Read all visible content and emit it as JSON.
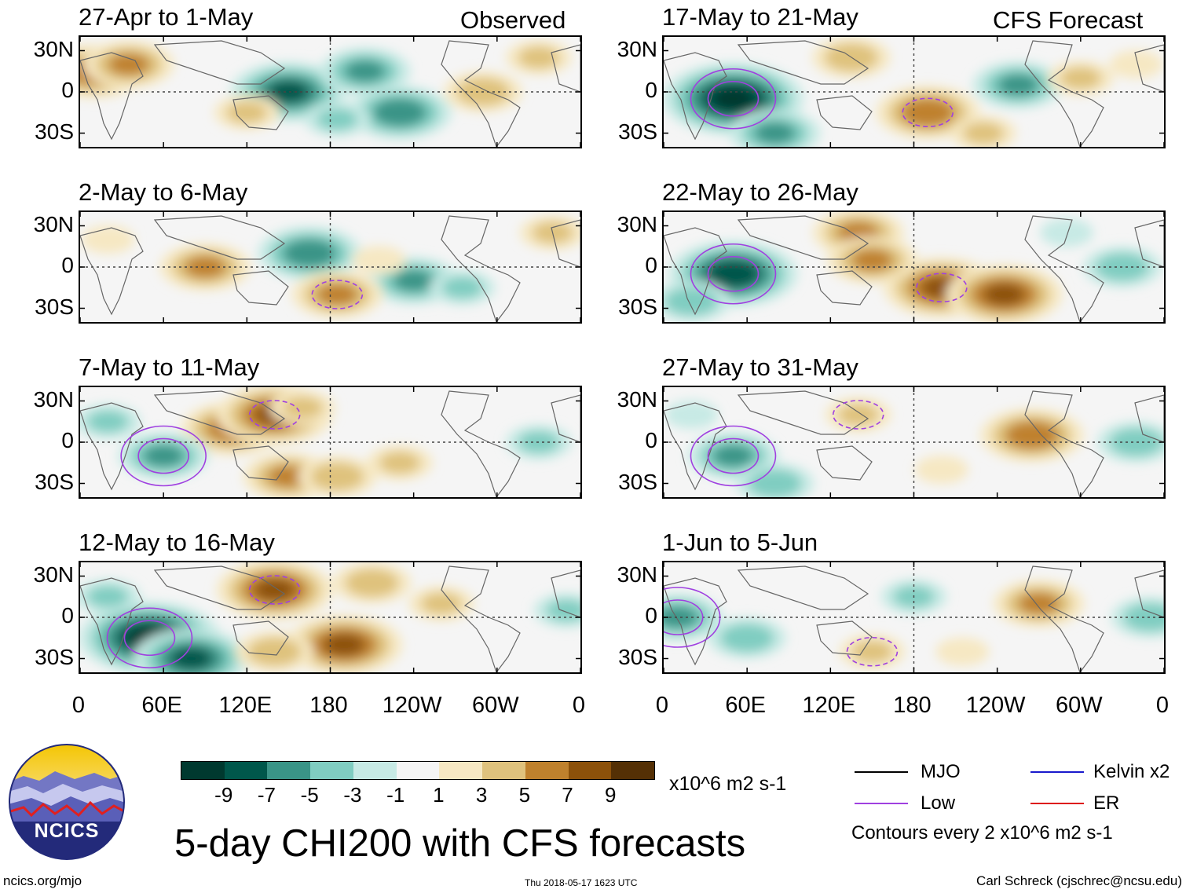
{
  "headers": {
    "observed": "Observed",
    "forecast": "CFS Forecast"
  },
  "panels": [
    {
      "title": "27-Apr to 1-May",
      "seed": 1,
      "anomalies": [
        {
          "lon": 10,
          "lat": 15,
          "v": 6
        },
        {
          "lon": 35,
          "lat": 20,
          "v": 5
        },
        {
          "lon": 150,
          "lat": 0,
          "v": -7
        },
        {
          "lon": 205,
          "lat": 15,
          "v": -5
        },
        {
          "lon": 230,
          "lat": -15,
          "v": -6
        },
        {
          "lon": 290,
          "lat": 0,
          "v": 4
        },
        {
          "lon": 120,
          "lat": -15,
          "v": 3
        },
        {
          "lon": 185,
          "lat": -20,
          "v": -3
        },
        {
          "lon": 330,
          "lat": 25,
          "v": 3
        }
      ]
    },
    {
      "title": "2-May to 6-May",
      "seed": 2,
      "anomalies": [
        {
          "lon": 90,
          "lat": 0,
          "v": 5
        },
        {
          "lon": 165,
          "lat": 10,
          "v": -6
        },
        {
          "lon": 240,
          "lat": -10,
          "v": -5
        },
        {
          "lon": 185,
          "lat": -20,
          "v": 5
        },
        {
          "lon": 275,
          "lat": -15,
          "v": -3
        },
        {
          "lon": 340,
          "lat": 25,
          "v": 3
        },
        {
          "lon": 20,
          "lat": 20,
          "v": 2
        },
        {
          "lon": 215,
          "lat": 5,
          "v": 2
        }
      ]
    },
    {
      "title": "7-May to 11-May",
      "seed": 3,
      "anomalies": [
        {
          "lon": 110,
          "lat": 10,
          "v": 6
        },
        {
          "lon": 140,
          "lat": 20,
          "v": 7
        },
        {
          "lon": 60,
          "lat": -10,
          "v": -5
        },
        {
          "lon": 150,
          "lat": -25,
          "v": 5
        },
        {
          "lon": 185,
          "lat": -25,
          "v": 4
        },
        {
          "lon": 230,
          "lat": -15,
          "v": 3
        },
        {
          "lon": 20,
          "lat": 15,
          "v": -3
        },
        {
          "lon": 330,
          "lat": 0,
          "v": -3
        },
        {
          "lon": 160,
          "lat": 25,
          "v": 3
        }
      ]
    },
    {
      "title": "12-May to 16-May",
      "seed": 4,
      "anomalies": [
        {
          "lon": 50,
          "lat": -15,
          "v": -9
        },
        {
          "lon": 80,
          "lat": -30,
          "v": -7
        },
        {
          "lon": 140,
          "lat": 20,
          "v": 7
        },
        {
          "lon": 190,
          "lat": -20,
          "v": 7
        },
        {
          "lon": 210,
          "lat": 25,
          "v": 4
        },
        {
          "lon": 260,
          "lat": 10,
          "v": 3
        },
        {
          "lon": 140,
          "lat": -25,
          "v": 4
        },
        {
          "lon": 20,
          "lat": 15,
          "v": -3
        },
        {
          "lon": 350,
          "lat": 5,
          "v": -3
        }
      ]
    },
    {
      "title": "17-May to 21-May",
      "seed": 5,
      "anomalies": [
        {
          "lon": 50,
          "lat": -5,
          "v": -9
        },
        {
          "lon": 80,
          "lat": -30,
          "v": -5
        },
        {
          "lon": 190,
          "lat": -15,
          "v": 6
        },
        {
          "lon": 135,
          "lat": 25,
          "v": 4
        },
        {
          "lon": 255,
          "lat": 5,
          "v": -5
        },
        {
          "lon": 300,
          "lat": 10,
          "v": 3
        },
        {
          "lon": 230,
          "lat": -30,
          "v": 3
        },
        {
          "lon": 340,
          "lat": 20,
          "v": 2
        }
      ]
    },
    {
      "title": "22-May to 26-May",
      "seed": 6,
      "anomalies": [
        {
          "lon": 50,
          "lat": -5,
          "v": -8
        },
        {
          "lon": 20,
          "lat": -25,
          "v": -4
        },
        {
          "lon": 200,
          "lat": -15,
          "v": 7
        },
        {
          "lon": 245,
          "lat": -20,
          "v": 7
        },
        {
          "lon": 140,
          "lat": 25,
          "v": 5
        },
        {
          "lon": 150,
          "lat": 5,
          "v": 5
        },
        {
          "lon": 330,
          "lat": 0,
          "v": -4
        },
        {
          "lon": 290,
          "lat": 25,
          "v": -2
        }
      ]
    },
    {
      "title": "27-May to 31-May",
      "seed": 7,
      "anomalies": [
        {
          "lon": 50,
          "lat": -10,
          "v": -5
        },
        {
          "lon": 80,
          "lat": -30,
          "v": -4
        },
        {
          "lon": 265,
          "lat": 5,
          "v": 6
        },
        {
          "lon": 140,
          "lat": 20,
          "v": 3
        },
        {
          "lon": 200,
          "lat": -20,
          "v": 2
        },
        {
          "lon": 340,
          "lat": 0,
          "v": -4
        },
        {
          "lon": 20,
          "lat": 20,
          "v": -2
        }
      ]
    },
    {
      "title": "1-Jun to 5-Jun",
      "seed": 8,
      "anomalies": [
        {
          "lon": 60,
          "lat": -15,
          "v": -4
        },
        {
          "lon": 10,
          "lat": 0,
          "v": -5
        },
        {
          "lon": 270,
          "lat": 10,
          "v": 5
        },
        {
          "lon": 180,
          "lat": 15,
          "v": -3
        },
        {
          "lon": 150,
          "lat": -25,
          "v": 3
        },
        {
          "lon": 215,
          "lat": -25,
          "v": 2
        },
        {
          "lon": 350,
          "lat": 0,
          "v": -4
        }
      ]
    }
  ],
  "axes": {
    "lat_labels": [
      "30N",
      "0",
      "30S"
    ],
    "lon_labels": [
      "0",
      "60E",
      "120E",
      "180",
      "120W",
      "60W",
      "0"
    ]
  },
  "colorbar": {
    "colors": [
      "#00392f",
      "#00574b",
      "#3a9487",
      "#80cdc1",
      "#c7eae5",
      "#f5f5f5",
      "#f6e8c3",
      "#dfc27d",
      "#bf812d",
      "#8c510a",
      "#543005"
    ],
    "labels": [
      "-9",
      "-7",
      "-5",
      "-3",
      "-1",
      "1",
      "3",
      "5",
      "7",
      "9"
    ],
    "units": "x10^6 m2 s-1"
  },
  "legend": {
    "items": [
      {
        "label": "MJO",
        "color": "#000000"
      },
      {
        "label": "Low",
        "color": "#a040e0"
      },
      {
        "label": "Kelvin x2",
        "color": "#1a1acc"
      },
      {
        "label": "ER",
        "color": "#dd1111"
      }
    ],
    "contours": "Contours every 2 x10^6 m2 s-1"
  },
  "title": "5-day CHI200 with CFS forecasts",
  "logo": {
    "text": "NCICS"
  },
  "footer": {
    "url": "ncics.org/mjo",
    "timestamp": "Thu 2018-05-17 1623 UTC",
    "author": "Carl Schreck (cjschrec@ncsu.edu)"
  }
}
